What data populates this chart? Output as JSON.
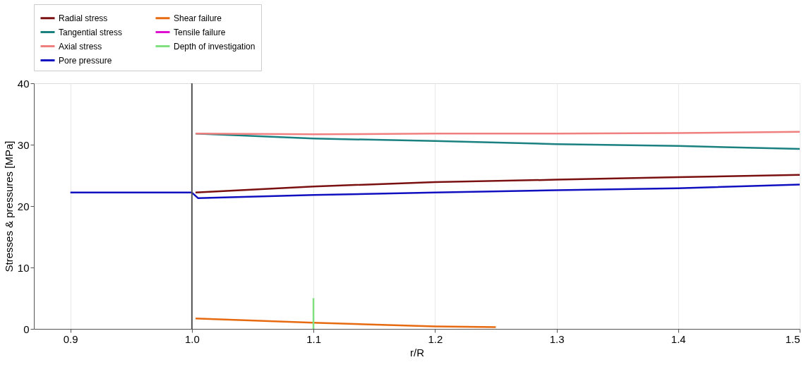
{
  "chart_data": {
    "type": "line",
    "xlabel": "r/R",
    "ylabel": "Stresses & pressures [MPa]",
    "xlim": [
      0.87,
      1.5
    ],
    "xticks": [
      {
        "value": 0.9,
        "label": "0.9"
      },
      {
        "value": 1.0,
        "label": "1.0"
      },
      {
        "value": 1.1,
        "label": "1.1"
      },
      {
        "value": 1.2,
        "label": "1.2"
      },
      {
        "value": 1.3,
        "label": "1.3"
      },
      {
        "value": 1.4,
        "label": "1.4"
      },
      {
        "value": 1.5,
        "label": "1.5"
      }
    ],
    "ylim": [
      0,
      40
    ],
    "yticks": [
      0,
      10,
      20,
      30,
      40
    ],
    "grid": "x",
    "legend": "top",
    "line_style": "solid",
    "marker": "none",
    "ref_lines": [
      {
        "axis": "x",
        "value": 1.0,
        "color": "#555555"
      }
    ],
    "series": [
      {
        "name": "Radial stress",
        "color": "#7a1010",
        "x": [
          1.003,
          1.1,
          1.2,
          1.3,
          1.4,
          1.5
        ],
        "values": [
          22.2,
          23.2,
          23.9,
          24.3,
          24.7,
          25.1
        ]
      },
      {
        "name": "Tangential stress",
        "color": "#1a8080",
        "x": [
          1.003,
          1.1,
          1.2,
          1.3,
          1.4,
          1.5
        ],
        "values": [
          31.8,
          31.0,
          30.6,
          30.1,
          29.8,
          29.3
        ]
      },
      {
        "name": "Axial stress",
        "color": "#f08080",
        "x": [
          1.003,
          1.1,
          1.2,
          1.3,
          1.4,
          1.5
        ],
        "values": [
          31.8,
          31.7,
          31.8,
          31.8,
          31.9,
          32.1
        ]
      },
      {
        "name": "Pore pressure",
        "color": "#1010c0",
        "x": [
          0.9,
          1.0,
          1.005,
          1.1,
          1.2,
          1.3,
          1.4,
          1.5
        ],
        "values": [
          22.2,
          22.2,
          21.3,
          21.8,
          22.2,
          22.6,
          22.9,
          23.5
        ]
      },
      {
        "name": "Shear failure",
        "color": "#e86a10",
        "x": [
          1.003,
          1.1,
          1.2,
          1.25
        ],
        "values": [
          1.7,
          1.0,
          0.4,
          0.3
        ]
      },
      {
        "name": "Tensile failure",
        "color": "#e010d0"
      },
      {
        "name": "Depth of investigation",
        "color": "#80e080",
        "x": [
          1.1,
          1.1
        ],
        "values": [
          0,
          5
        ]
      }
    ]
  }
}
